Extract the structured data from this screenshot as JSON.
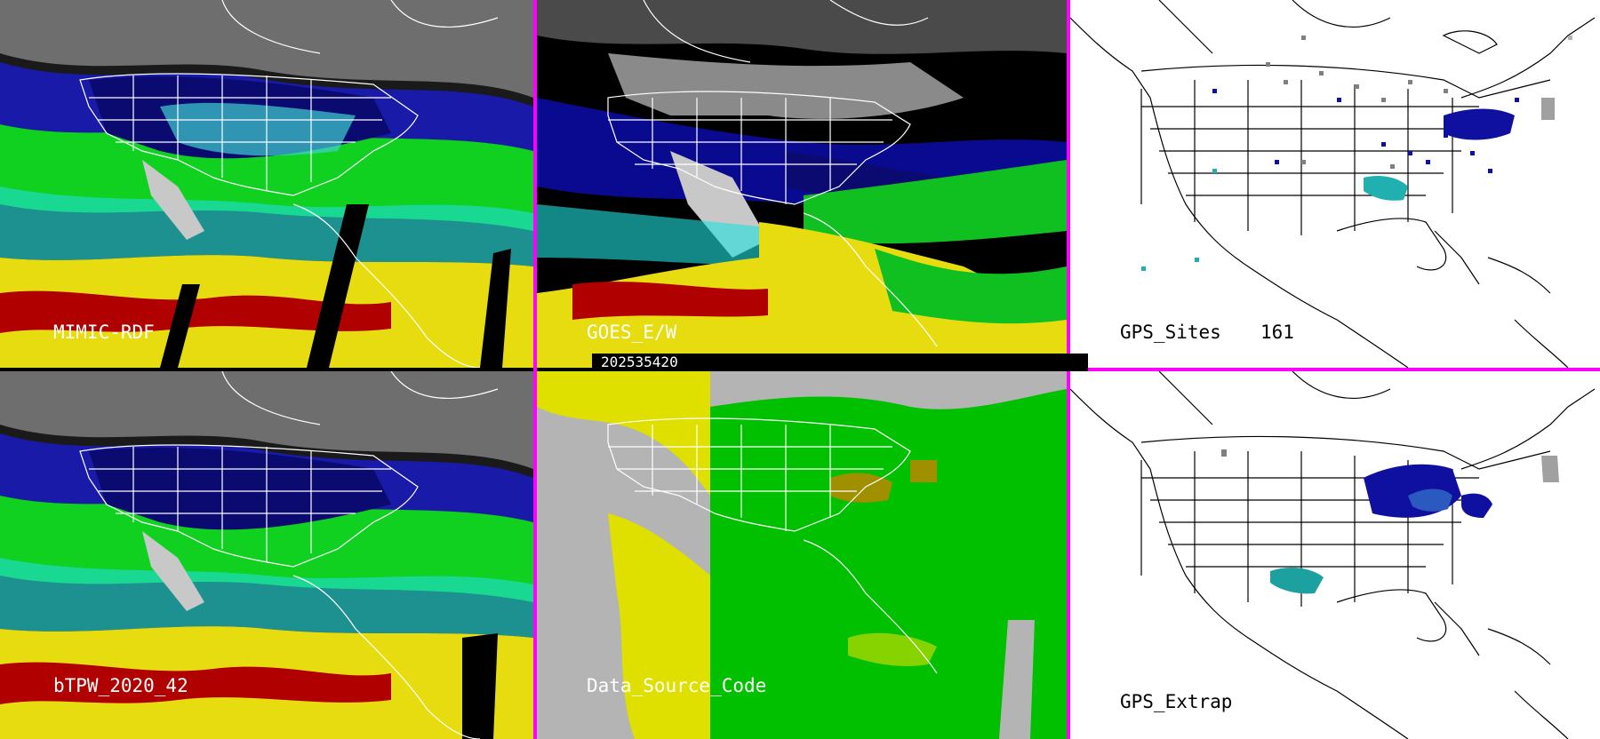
{
  "panels": {
    "mimic": {
      "label": "MIMIC-RDF"
    },
    "goes": {
      "label": "GOES_E/W"
    },
    "gps_sites": {
      "label": "GPS_Sites",
      "count": "161"
    },
    "btpw": {
      "label": "bTPW_2020_42"
    },
    "data_source": {
      "label": "Data_Source_Code"
    },
    "gps_extrap": {
      "label": "GPS_Extrap"
    }
  },
  "timestamp": "202535420",
  "colors": {
    "separator": "#ff00ff",
    "palette_dry": "#1010a0",
    "palette_moist": "#00d000",
    "palette_wet": "#e8e000",
    "palette_veryWet": "#b00000",
    "source_gray": "#b4b4b4",
    "source_yellow": "#e0e000",
    "source_green": "#00c000"
  }
}
